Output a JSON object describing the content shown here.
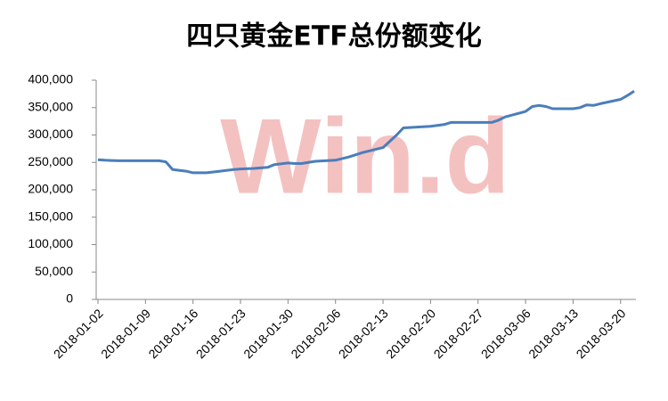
{
  "chart_data": {
    "type": "line",
    "title": "四只黄金ETF总份额变化",
    "watermark": "Win.d",
    "x": [
      "2018-01-02",
      "2018-01-03",
      "2018-01-05",
      "2018-01-09",
      "2018-01-11",
      "2018-01-12",
      "2018-01-13",
      "2018-01-15",
      "2018-01-16",
      "2018-01-18",
      "2018-01-20",
      "2018-01-22",
      "2018-01-23",
      "2018-01-25",
      "2018-01-27",
      "2018-01-28",
      "2018-01-30",
      "2018-01-31",
      "2018-02-01",
      "2018-02-03",
      "2018-02-06",
      "2018-02-08",
      "2018-02-10",
      "2018-02-13",
      "2018-02-15",
      "2018-02-16",
      "2018-02-20",
      "2018-02-22",
      "2018-02-23",
      "2018-02-27",
      "2018-03-01",
      "2018-03-02",
      "2018-03-03",
      "2018-03-06",
      "2018-03-07",
      "2018-03-08",
      "2018-03-09",
      "2018-03-10",
      "2018-03-13",
      "2018-03-14",
      "2018-03-15",
      "2018-03-16",
      "2018-03-17",
      "2018-03-20",
      "2018-03-21",
      "2018-03-22"
    ],
    "series": [
      {
        "color": "#4a7ebb",
        "values": [
          255000,
          254000,
          253000,
          253000,
          253000,
          251000,
          237000,
          234000,
          231000,
          231000,
          234000,
          237000,
          238000,
          239000,
          241000,
          246000,
          249000,
          248000,
          248000,
          252000,
          254000,
          260000,
          268000,
          277000,
          300000,
          313000,
          316000,
          319000,
          323000,
          323000,
          323000,
          327000,
          333000,
          343000,
          352000,
          354000,
          352000,
          348000,
          348000,
          350000,
          355000,
          354000,
          357000,
          365000,
          372000,
          380000
        ]
      }
    ],
    "xlim": [
      "2018-01-02",
      "2018-03-22"
    ],
    "xticks": [
      "2018-01-02",
      "2018-01-09",
      "2018-01-16",
      "2018-01-23",
      "2018-01-30",
      "2018-02-06",
      "2018-02-13",
      "2018-02-20",
      "2018-02-27",
      "2018-03-06",
      "2018-03-13",
      "2018-03-20"
    ],
    "ylim": [
      0,
      400000
    ],
    "yticks": [
      0,
      {
        "value": 50000,
        "label": "50,000"
      },
      {
        "value": 100000,
        "label": "100,000"
      },
      {
        "value": 150000,
        "label": "150,000"
      },
      {
        "value": 200000,
        "label": "200,000"
      },
      {
        "value": 250000,
        "label": "250,000"
      },
      {
        "value": 300000,
        "label": "300,000"
      },
      {
        "value": 350000,
        "label": "350,000"
      },
      {
        "value": 400000,
        "label": "400,000"
      }
    ]
  }
}
